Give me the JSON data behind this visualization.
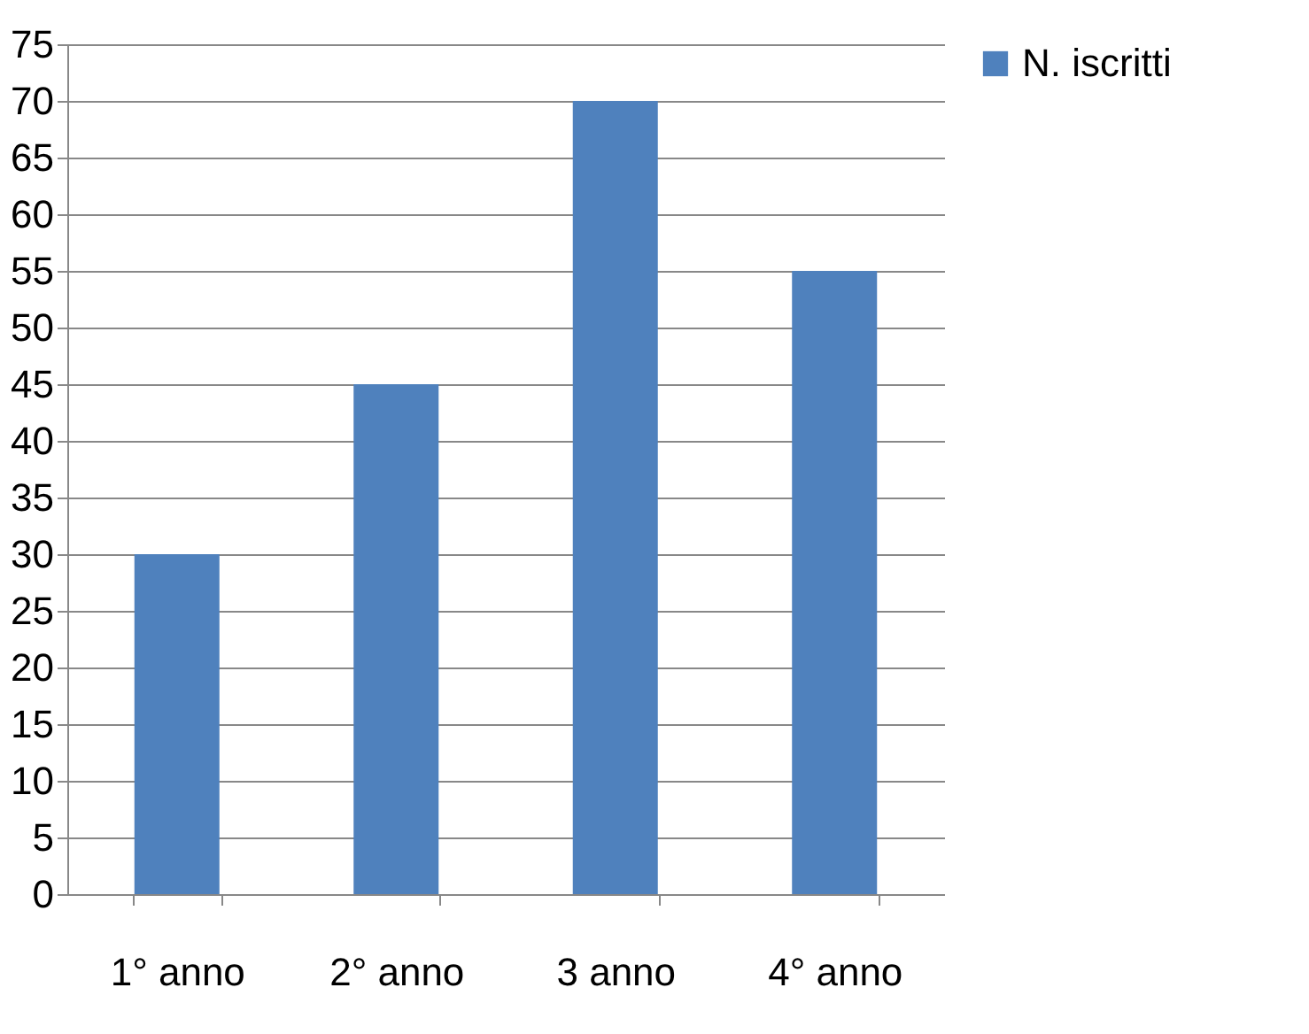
{
  "chart_data": {
    "type": "bar",
    "categories": [
      "1° anno",
      "2° anno",
      "3 anno",
      "4° anno"
    ],
    "series": [
      {
        "name": "N. iscritti",
        "color": "#4f81bd",
        "values": [
          30,
          45,
          70,
          55
        ]
      }
    ],
    "ylim": [
      0,
      75
    ],
    "yticks": [
      0,
      5,
      10,
      15,
      20,
      25,
      30,
      35,
      40,
      45,
      50,
      55,
      60,
      65,
      70,
      75
    ],
    "grid": "y",
    "legend": "right"
  }
}
